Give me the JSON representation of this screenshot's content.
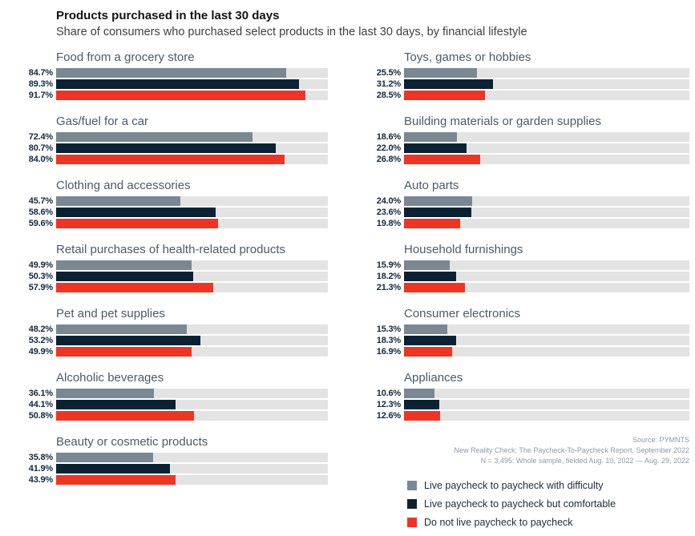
{
  "header": {
    "title": "Products purchased in the last 30 days",
    "subtitle": "Share of consumers who purchased select products in the last 30 days, by financial lifestyle"
  },
  "chart_data": {
    "type": "bar",
    "orientation": "horizontal",
    "value_unit": "%",
    "xlim": [
      0,
      100
    ],
    "grid": false,
    "legend_position": "bottom-right",
    "track_color": "#e3e3e4",
    "series": [
      {
        "name": "Live paycheck to paycheck with difficulty",
        "color": "#7a8794"
      },
      {
        "name": "Live paycheck to paycheck but comfortable",
        "color": "#0c2233"
      },
      {
        "name": "Do not live paycheck to paycheck",
        "color": "#ee3524"
      }
    ],
    "columns": [
      {
        "groups": [
          {
            "category": "Food from a grocery store",
            "values": [
              84.7,
              89.3,
              91.7
            ]
          },
          {
            "category": "Gas/fuel for a car",
            "values": [
              72.4,
              80.7,
              84.0
            ]
          },
          {
            "category": "Clothing and accessories",
            "values": [
              45.7,
              58.6,
              59.6
            ]
          },
          {
            "category": "Retail purchases of health-related products",
            "values": [
              49.9,
              50.3,
              57.9
            ]
          },
          {
            "category": "Pet and pet supplies",
            "values": [
              48.2,
              53.2,
              49.9
            ]
          },
          {
            "category": "Alcoholic beverages",
            "values": [
              36.1,
              44.1,
              50.8
            ]
          },
          {
            "category": "Beauty or cosmetic products",
            "values": [
              35.8,
              41.9,
              43.9
            ]
          }
        ]
      },
      {
        "groups": [
          {
            "category": "Toys, games or hobbies",
            "values": [
              25.5,
              31.2,
              28.5
            ]
          },
          {
            "category": "Building materials or garden supplies",
            "values": [
              18.6,
              22.0,
              26.8
            ]
          },
          {
            "category": "Auto parts",
            "values": [
              24.0,
              23.6,
              19.8
            ]
          },
          {
            "category": "Household furnishings",
            "values": [
              15.9,
              18.2,
              21.3
            ]
          },
          {
            "category": "Consumer electronics",
            "values": [
              15.3,
              18.3,
              16.9
            ]
          },
          {
            "category": "Appliances",
            "values": [
              10.6,
              12.3,
              12.6
            ]
          }
        ]
      }
    ]
  },
  "source": {
    "lines": [
      "Source: PYMNTS",
      "New Reality Check: The Paycheck-To-Paycheck Report, September 2022",
      "N = 3,495: Whole sample, fielded Aug. 10, 2022 — Aug. 29, 2022"
    ]
  },
  "legend": {
    "items": [
      {
        "label": "Live paycheck to paycheck with difficulty",
        "color": "#7a8794"
      },
      {
        "label": "Live paycheck to paycheck but comfortable",
        "color": "#0c2233"
      },
      {
        "label": "Do not live paycheck to paycheck",
        "color": "#ee3524"
      }
    ]
  }
}
